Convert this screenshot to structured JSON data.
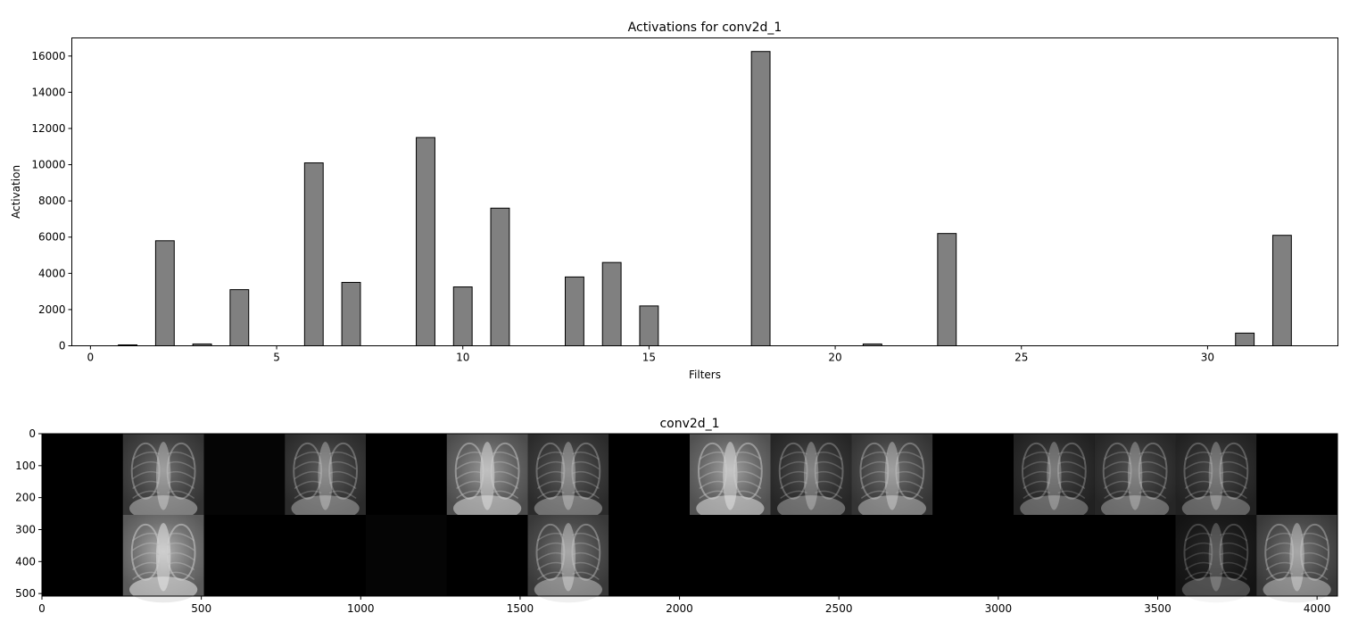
{
  "chart_data": [
    {
      "type": "bar",
      "title": "Activations for conv2d_1",
      "xlabel": "Filters",
      "ylabel": "Activation",
      "xlim": [
        -0.5,
        33.5
      ],
      "ylim": [
        0,
        17000
      ],
      "xticks": [
        0,
        5,
        10,
        15,
        20,
        25,
        30
      ],
      "yticks": [
        0,
        2000,
        4000,
        6000,
        8000,
        10000,
        12000,
        14000,
        16000
      ],
      "x": [
        0,
        1,
        2,
        3,
        4,
        5,
        6,
        7,
        8,
        9,
        10,
        11,
        12,
        13,
        14,
        15,
        16,
        17,
        18,
        19,
        20,
        21,
        22,
        23,
        24,
        25,
        26,
        27,
        28,
        29,
        30,
        31,
        32
      ],
      "values": [
        0,
        50,
        5800,
        100,
        3100,
        0,
        10100,
        3500,
        0,
        11500,
        3250,
        7600,
        0,
        3800,
        4600,
        2200,
        0,
        0,
        16250,
        0,
        0,
        100,
        0,
        6200,
        0,
        0,
        0,
        0,
        0,
        0,
        0,
        700,
        6100
      ],
      "bar_color": "#808080",
      "edge_color": "#000000",
      "grid": false
    },
    {
      "type": "heatmap",
      "title": "conv2d_1",
      "xlim": [
        0,
        4064
      ],
      "ylim": [
        508,
        0
      ],
      "xticks": [
        0,
        500,
        1000,
        1500,
        2000,
        2500,
        3000,
        3500,
        4000
      ],
      "yticks": [
        0,
        100,
        200,
        300,
        400,
        500
      ],
      "tile_size": 254,
      "grid_cols": 16,
      "grid_rows": 2,
      "tile_brightness": [
        [
          0.0,
          0.55,
          0.05,
          0.45,
          0.0,
          0.8,
          0.45,
          0.0,
          0.85,
          0.4,
          0.55,
          0.0,
          0.35,
          0.4,
          0.35,
          0.0
        ],
        [
          0.0,
          0.95,
          0.0,
          0.0,
          0.05,
          0.0,
          0.6,
          0.0,
          0.0,
          0.0,
          0.0,
          0.0,
          0.0,
          0.0,
          0.2,
          0.6
        ]
      ],
      "colormap": "gray"
    }
  ]
}
